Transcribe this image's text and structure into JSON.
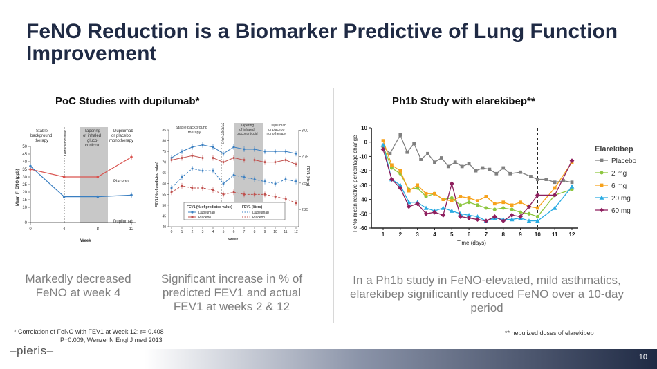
{
  "slide": {
    "title": "FeNO Reduction is a Biomarker Predictive of Lung Function Improvement",
    "page_number": "10",
    "logo": "pieris"
  },
  "left": {
    "heading": "PoC Studies with dupilumab*",
    "caption_1": "Markedly decreased FeNO at week 4",
    "caption_2": "Significant increase in % of predicted FEV1 and actual FEV1 at weeks 2 & 12",
    "footnote_line1": "* Correlation of FeNO with FEV1  at Week 12: r=-0.408",
    "footnote_line2": "P=0.009, Wenzel N Engl J med 2013"
  },
  "right": {
    "heading": "Ph1b Study with elarekibep**",
    "caption": "In a Ph1b study in FeNO-elevated, mild asthmatics, elarekibep significantly reduced FeNO over a 10-day period",
    "footnote": "** nebulized doses of elarekibep"
  },
  "colors": {
    "title": "#1f2a44",
    "placebo": "#808080",
    "mg2": "#8dc63f",
    "mg6": "#f7a21b",
    "mg20": "#29abe2",
    "mg60": "#8e1f5e",
    "dupi_feno_placebo": "#d9534f",
    "dupi_feno_dupilumab": "#3a7fc1",
    "footer_dark": "#1f2a44"
  },
  "chart_data": [
    {
      "type": "line",
      "panel": "dupilumab-feno",
      "xlabel": "Week",
      "ylabel": "Mean F_ENO (ppb)",
      "x": [
        0,
        4,
        8,
        12
      ],
      "ylim": [
        0,
        50
      ],
      "xticks": [
        "0",
        "4",
        "8",
        "12"
      ],
      "yticks": [
        "0",
        "10",
        "15",
        "20",
        "25",
        "30",
        "35",
        "40",
        "45",
        "50"
      ],
      "phase_labels": [
        "Stable background therapy",
        "LABA withdrawal",
        "Tapering of inhaled gluco-corticoid",
        "Dupilumab or placebo monotherapy"
      ],
      "series": [
        {
          "name": "Placebo",
          "values": [
            35,
            30,
            30,
            43
          ]
        },
        {
          "name": "Dupilumab",
          "values": [
            37,
            17,
            17,
            18
          ]
        }
      ]
    },
    {
      "type": "line",
      "panel": "dupilumab-fev1",
      "xlabel": "Week",
      "ylabel": "FEV1 (% of predicted value)",
      "y2label": "FEV1 (liters)",
      "x": [
        0,
        1,
        2,
        3,
        4,
        5,
        6,
        7,
        8,
        9,
        10,
        11,
        12
      ],
      "ylim": [
        40,
        85
      ],
      "y2ticks": [
        "2.25",
        "2.50",
        "2.75",
        "3.00"
      ],
      "phase_labels": [
        "Stable background therapy",
        "LABA withdrawal",
        "Tapering of inhaled glucocorticoid",
        "Dupilumab or placebo monotherapy"
      ],
      "legend_title_1": "FEV1 (% of predicted value)",
      "legend_title_2": "FEV1 (liters)",
      "legend_dupilumab": "Dupilumab",
      "legend_placebo": "Placebo",
      "series": [
        {
          "name": "Dupilumab % predicted",
          "values": [
            72,
            75,
            77,
            78,
            77,
            74,
            77,
            76,
            76,
            75,
            75,
            75,
            74
          ]
        },
        {
          "name": "Placebo % predicted",
          "values": [
            71,
            72,
            73,
            72,
            72,
            70,
            72,
            71,
            71,
            70,
            70,
            71,
            69
          ]
        },
        {
          "name": "Dupilumab liters",
          "values": [
            58,
            63,
            67,
            66,
            66,
            60,
            64,
            63,
            62,
            61,
            60,
            62,
            61
          ]
        },
        {
          "name": "Placebo liters",
          "values": [
            56,
            59,
            58,
            58,
            57,
            55,
            56,
            55,
            55,
            55,
            54,
            53,
            51
          ]
        }
      ]
    },
    {
      "type": "line",
      "panel": "elarekibep",
      "xlabel": "Time (days)",
      "ylabel": "FeNo mean relative percentage change",
      "x": [
        1,
        2,
        3,
        4,
        5,
        6,
        7,
        8,
        9,
        10,
        11,
        12
      ],
      "xticks": [
        "1",
        "2",
        "3",
        "4",
        "5",
        "6",
        "7",
        "8",
        "9",
        "10",
        "11",
        "12"
      ],
      "ylim": [
        -60,
        10
      ],
      "yticks": [
        "10",
        "0",
        "-10",
        "-20",
        "-30",
        "-40",
        "-50",
        "-60"
      ],
      "legend_title": "Elarekibep",
      "series": [
        {
          "name": "Placebo",
          "x": [
            1,
            1.4,
            2,
            2.4,
            2.8,
            3.2,
            3.6,
            4,
            4.4,
            4.8,
            5.2,
            5.6,
            6,
            6.4,
            6.8,
            7.2,
            7.6,
            8,
            8.4,
            9,
            9.6,
            10,
            10.5,
            11,
            11.5,
            12
          ],
          "values": [
            -3,
            -8,
            5,
            -7,
            -1,
            -12,
            -8,
            -14,
            -11,
            -17,
            -14,
            -17,
            -15,
            -20,
            -18,
            -19,
            -22,
            -18,
            -22,
            -21,
            -24,
            -26,
            -26,
            -28,
            -27,
            -28
          ]
        },
        {
          "name": "2 mg",
          "x": [
            1,
            1.5,
            2,
            2.5,
            3,
            3.5,
            4,
            4.5,
            5,
            5.5,
            6,
            6.5,
            7,
            7.5,
            8,
            8.5,
            9,
            9.5,
            10,
            11,
            12
          ],
          "values": [
            -3,
            -18,
            -22,
            -33,
            -32,
            -38,
            -36,
            -40,
            -39,
            -44,
            -42,
            -44,
            -46,
            -47,
            -46,
            -47,
            -49,
            -50,
            -52,
            -37,
            -33
          ]
        },
        {
          "name": "6 mg",
          "x": [
            1,
            1.5,
            2,
            2.5,
            3,
            3.5,
            4,
            4.5,
            5,
            5.5,
            6,
            6.5,
            7,
            7.5,
            8,
            8.5,
            9,
            9.5,
            10,
            11,
            12
          ],
          "values": [
            1,
            -16,
            -20,
            -34,
            -30,
            -36,
            -36,
            -40,
            -41,
            -38,
            -39,
            -41,
            -38,
            -43,
            -42,
            -44,
            -42,
            -45,
            -46,
            -32,
            -14
          ]
        },
        {
          "name": "20 mg",
          "x": [
            1,
            1.5,
            2,
            2.5,
            3,
            3.5,
            4,
            4.5,
            5,
            5.5,
            6,
            6.5,
            7,
            7.5,
            8,
            8.5,
            9,
            9.5,
            10,
            11,
            12
          ],
          "values": [
            -2,
            -26,
            -30,
            -42,
            -42,
            -46,
            -48,
            -46,
            -48,
            -50,
            -51,
            -52,
            -55,
            -53,
            -54,
            -54,
            -53,
            -55,
            -55,
            -46,
            -31
          ]
        },
        {
          "name": "60 mg",
          "x": [
            1,
            1.5,
            2,
            2.5,
            3,
            3.5,
            4,
            4.5,
            5,
            5.5,
            6,
            6.5,
            7,
            7.5,
            8,
            8.5,
            9,
            9.5,
            10,
            11,
            12
          ],
          "values": [
            -5,
            -26,
            -32,
            -45,
            -43,
            -50,
            -49,
            -51,
            -29,
            -52,
            -53,
            -54,
            -55,
            -52,
            -55,
            -51,
            -52,
            -45,
            -37,
            -37,
            -13
          ]
        }
      ],
      "dashed_line_at_x": 10
    }
  ]
}
